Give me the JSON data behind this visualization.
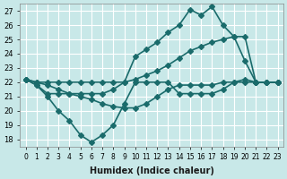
{
  "xlabel": "Humidex (Indice chaleur)",
  "ylabel": "",
  "bg_color": "#c8e8e8",
  "grid_color": "#ffffff",
  "line_color": "#1a6b6b",
  "marker": "D",
  "markersize": 3,
  "linewidth": 1.2,
  "xlim": [
    -0.5,
    23.5
  ],
  "ylim": [
    17.5,
    27.5
  ],
  "yticks": [
    18,
    19,
    20,
    21,
    22,
    23,
    24,
    25,
    26,
    27
  ],
  "xticks": [
    0,
    1,
    2,
    3,
    4,
    5,
    6,
    7,
    8,
    9,
    10,
    11,
    12,
    13,
    14,
    15,
    16,
    17,
    18,
    19,
    20,
    21,
    22,
    23
  ],
  "xtick_labels": [
    "0",
    "1",
    "2",
    "3",
    "4",
    "5",
    "6",
    "7",
    "8",
    "9",
    "10",
    "11",
    "12",
    "13",
    "14",
    "15",
    "16",
    "17",
    "18",
    "19",
    "20",
    "21",
    "22",
    "23"
  ],
  "series": [
    [
      22.2,
      21.8,
      21.0,
      20.0,
      19.3,
      18.3,
      17.8,
      18.3,
      19.0,
      20.5,
      22.0,
      22.0,
      22.0,
      22.0,
      21.2,
      21.2,
      21.2,
      21.2,
      21.5,
      22.0,
      22.0,
      22.0,
      22.0,
      22.0
    ],
    [
      22.2,
      21.8,
      21.2,
      21.2,
      21.2,
      21.2,
      21.2,
      21.2,
      21.5,
      22.0,
      23.8,
      24.3,
      24.8,
      25.5,
      26.0,
      27.1,
      26.7,
      27.3,
      26.0,
      25.2,
      23.5,
      22.0,
      22.0,
      22.0
    ],
    [
      22.2,
      22.0,
      22.0,
      22.0,
      22.0,
      22.0,
      22.0,
      22.0,
      22.0,
      22.0,
      22.2,
      22.5,
      22.8,
      23.2,
      23.7,
      24.2,
      24.5,
      24.8,
      25.0,
      25.2,
      25.2,
      22.0,
      22.0,
      22.0
    ],
    [
      22.2,
      22.0,
      21.8,
      21.5,
      21.2,
      21.0,
      20.8,
      20.5,
      20.3,
      20.2,
      20.2,
      20.5,
      21.0,
      21.5,
      21.8,
      21.8,
      21.8,
      21.8,
      22.0,
      22.0,
      22.2,
      22.0,
      22.0,
      22.0
    ]
  ]
}
